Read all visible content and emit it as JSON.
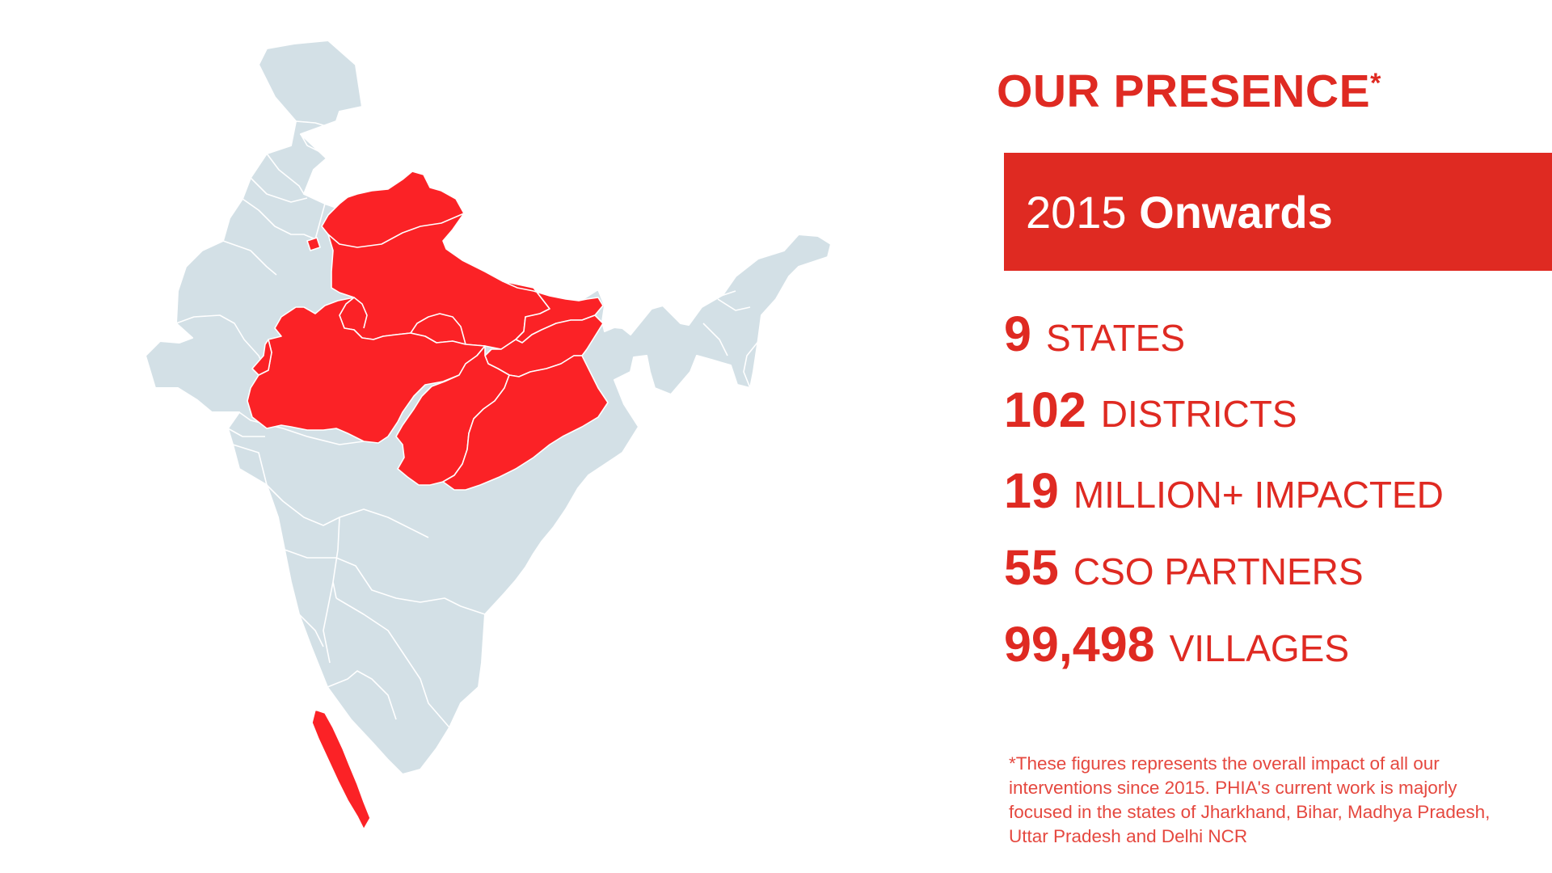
{
  "heading": {
    "title": "OUR PRESENCE",
    "asterisk": "*"
  },
  "banner": {
    "year": "2015",
    "word": "Onwards",
    "color": "#df2a22"
  },
  "stats": [
    {
      "value": "9",
      "label": "STATES"
    },
    {
      "value": "102",
      "label": "DISTRICTS"
    },
    {
      "value": "19",
      "label": "MILLION+ IMPACTED"
    },
    {
      "value": "55",
      "label": "CSO PARTNERS"
    },
    {
      "value": "99,498",
      "label": "VILLAGES"
    }
  ],
  "footnote": "*These figures represents the overall impact of all our interventions since 2015. PHIA's current work is majorly focused in the states of Jharkhand, Bihar, Madhya Pradesh, Uttar Pradesh and Delhi NCR",
  "map": {
    "country": "India",
    "highlighted_regions": [
      "Uttarakhand",
      "Delhi",
      "Uttar Pradesh",
      "Madhya Pradesh",
      "Bihar",
      "Jharkhand",
      "Chhattisgarh",
      "Odisha",
      "Kerala"
    ],
    "highlight_color": "#fb2226",
    "base_color": "#d3e0e6"
  }
}
